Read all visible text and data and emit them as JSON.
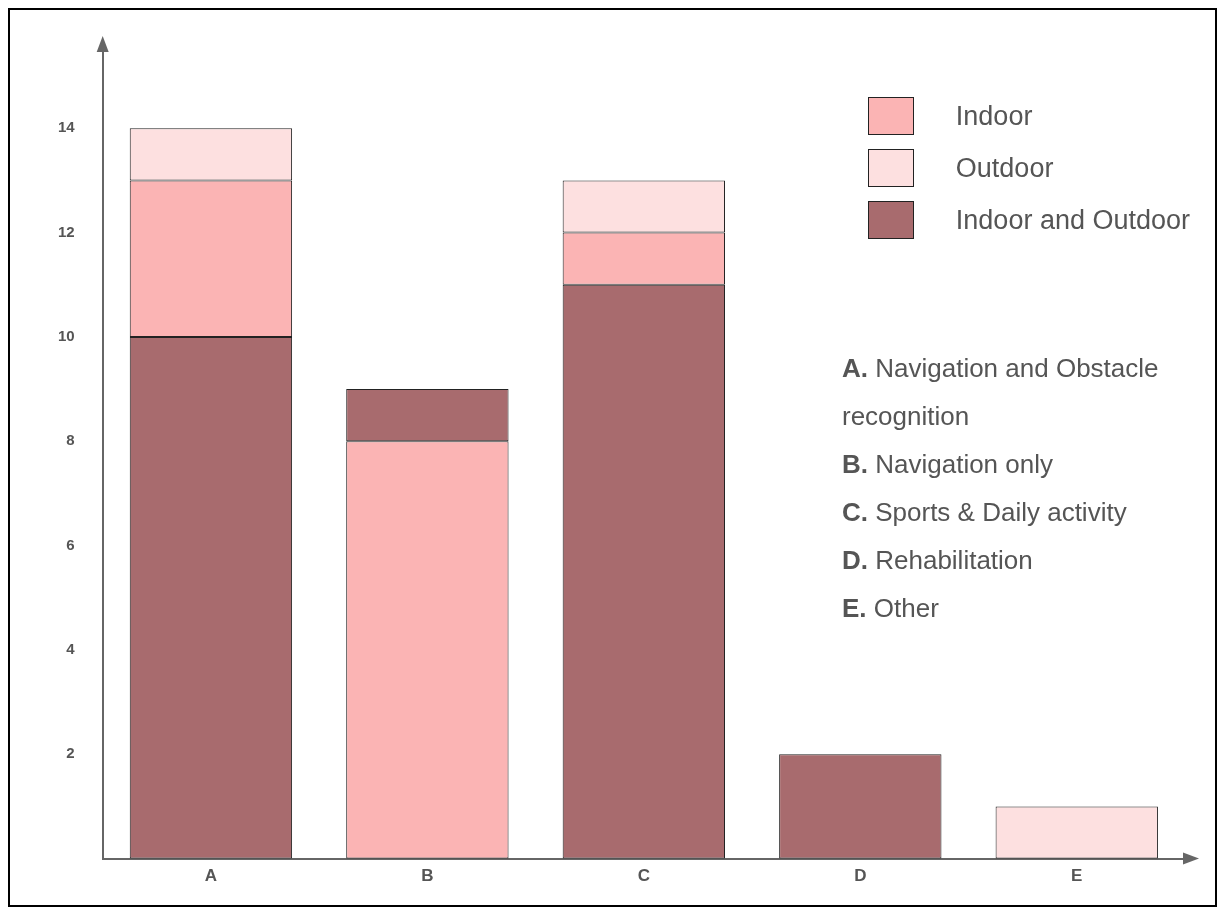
{
  "chart_data": {
    "type": "bar",
    "categories": [
      "A",
      "B",
      "C",
      "D",
      "E"
    ],
    "series": [
      {
        "name": "Indoor",
        "color": "#fbb4b4",
        "values": [
          3,
          8,
          1,
          null,
          null
        ],
        "base": [
          10,
          0,
          11,
          null,
          null
        ]
      },
      {
        "name": "Outdoor",
        "color": "#fde0e0",
        "values": [
          1,
          null,
          1,
          null,
          1
        ],
        "base": [
          13,
          null,
          12,
          null,
          0
        ]
      },
      {
        "name": "Indoor and Outdoor",
        "color": "#a86b6e",
        "values": [
          10,
          1,
          11,
          2,
          null
        ],
        "base": [
          0,
          8,
          0,
          0,
          null
        ]
      }
    ],
    "ylim": [
      0,
      15.5
    ],
    "yticks": [
      2,
      4,
      6,
      8,
      10,
      12,
      14
    ],
    "grid": false,
    "legend": "top right",
    "annotations": [
      "A. Navigation and Obstacle recognition",
      "B. Navigation only",
      "C. Sports & Daily activity",
      "D. Rehabilitation",
      "E. Other"
    ]
  }
}
